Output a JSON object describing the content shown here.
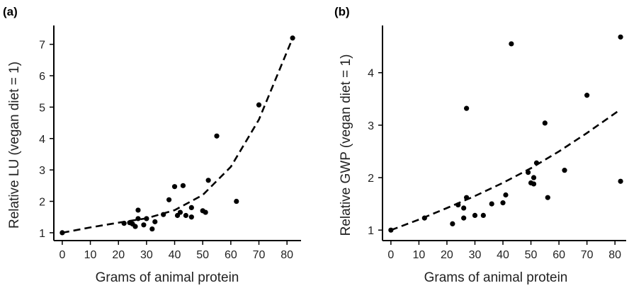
{
  "chart_data": [
    {
      "type": "scatter",
      "panel_label": "(a)",
      "xlabel": "Grams of animal protein",
      "ylabel": "Relative LU (vegan diet = 1)",
      "xlim": [
        -3,
        85
      ],
      "ylim": [
        0.75,
        7.6
      ],
      "xticks": [
        0,
        10,
        20,
        30,
        40,
        50,
        60,
        70,
        80
      ],
      "yticks": [
        1,
        2,
        3,
        4,
        5,
        6,
        7
      ],
      "points": [
        [
          0,
          1.0
        ],
        [
          22,
          1.3
        ],
        [
          24,
          1.32
        ],
        [
          25,
          1.28
        ],
        [
          26,
          1.2
        ],
        [
          27,
          1.45
        ],
        [
          27,
          1.72
        ],
        [
          29,
          1.25
        ],
        [
          30,
          1.45
        ],
        [
          32,
          1.12
        ],
        [
          33,
          1.35
        ],
        [
          36,
          1.58
        ],
        [
          38,
          2.05
        ],
        [
          40,
          2.47
        ],
        [
          41,
          1.55
        ],
        [
          42,
          1.65
        ],
        [
          43,
          2.5
        ],
        [
          44,
          1.55
        ],
        [
          46,
          1.8
        ],
        [
          46,
          1.5
        ],
        [
          50,
          1.7
        ],
        [
          51,
          1.65
        ],
        [
          52,
          2.67
        ],
        [
          55,
          4.08
        ],
        [
          62,
          2.0
        ],
        [
          70,
          5.07
        ],
        [
          82,
          7.2
        ]
      ],
      "fit_line": {
        "style": "dashed",
        "x": [
          0,
          10,
          20,
          30,
          40,
          50,
          60,
          70,
          82
        ],
        "y": [
          1.0,
          1.17,
          1.32,
          1.46,
          1.72,
          2.2,
          3.1,
          4.6,
          7.2
        ]
      }
    },
    {
      "type": "scatter",
      "panel_label": "(b)",
      "xlabel": "Grams of animal protein",
      "ylabel": "Relative GWP (vegan diet = 1)",
      "xlim": [
        -3,
        84
      ],
      "ylim": [
        0.8,
        4.9
      ],
      "xticks": [
        0,
        10,
        20,
        30,
        40,
        50,
        60,
        70,
        80
      ],
      "yticks": [
        1,
        2,
        3,
        4
      ],
      "points": [
        [
          0,
          1.0
        ],
        [
          12,
          1.23
        ],
        [
          22,
          1.12
        ],
        [
          24,
          1.48
        ],
        [
          26,
          1.42
        ],
        [
          26,
          1.23
        ],
        [
          27,
          1.62
        ],
        [
          27,
          3.32
        ],
        [
          30,
          1.28
        ],
        [
          33,
          1.28
        ],
        [
          36,
          1.5
        ],
        [
          40,
          1.52
        ],
        [
          41,
          1.67
        ],
        [
          43,
          4.55
        ],
        [
          49,
          2.1
        ],
        [
          50,
          1.9
        ],
        [
          51,
          1.88
        ],
        [
          51,
          2.0
        ],
        [
          52,
          2.28
        ],
        [
          55,
          3.04
        ],
        [
          56,
          1.62
        ],
        [
          62,
          2.14
        ],
        [
          70,
          3.57
        ],
        [
          82,
          1.93
        ],
        [
          82,
          4.68
        ]
      ],
      "fit_line": {
        "style": "dashed",
        "x": [
          0,
          10,
          20,
          30,
          40,
          50,
          60,
          70,
          82
        ],
        "y": [
          1.0,
          1.2,
          1.42,
          1.65,
          1.9,
          2.18,
          2.5,
          2.85,
          3.3
        ]
      }
    }
  ]
}
